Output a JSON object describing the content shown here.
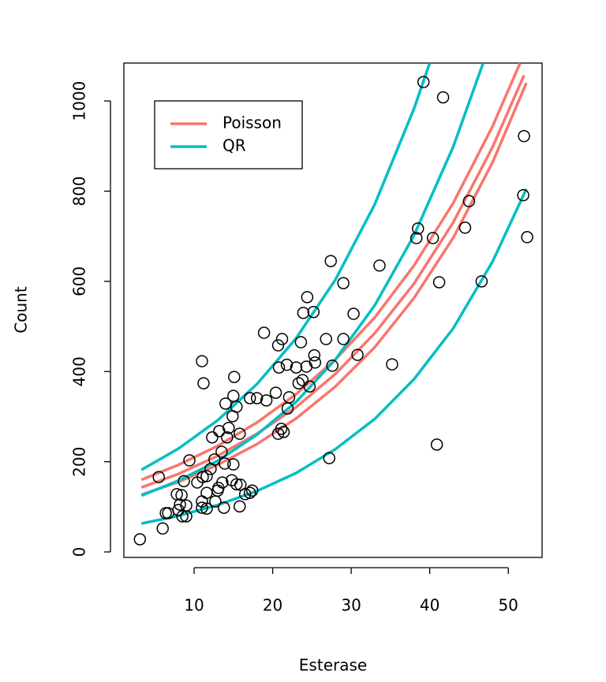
{
  "chart_data": {
    "type": "scatter",
    "xlabel": "Esterase",
    "ylabel": "Count",
    "xlim": [
      1.06,
      54.3
    ],
    "ylim": [
      -12.2,
      1084
    ],
    "xticks": [
      10,
      20,
      30,
      40,
      50
    ],
    "yticks": [
      0,
      200,
      400,
      600,
      800,
      1000
    ],
    "point_color": "#000000",
    "legend": "topleft",
    "x": [
      3.1,
      6.0,
      5.5,
      6.4,
      6.7,
      7.8,
      8.2,
      8.0,
      8.5,
      9.0,
      8.7,
      9.4,
      8.4,
      9.0,
      10.4,
      11.1,
      11.6,
      11.0,
      11.6,
      11.0,
      11.6,
      12.7,
      13.0,
      13.1,
      13.6,
      13.8,
      14.8,
      15.4,
      15.9,
      16.5,
      17.1,
      17.4,
      15.8,
      15.0,
      12.3,
      13.2,
      13.5,
      14.2,
      14.4,
      14.9,
      15.4,
      15.8,
      15.0,
      14.0,
      11.0,
      11.2,
      15.1,
      17.1,
      18.0,
      19.2,
      18.9,
      20.4,
      20.7,
      21.2,
      20.8,
      21.4,
      20.7,
      21.1,
      21.9,
      22.1,
      21.8,
      23.0,
      23.3,
      23.8,
      23.6,
      24.3,
      23.9,
      24.4,
      25.2,
      25.4,
      24.7,
      25.3,
      26.8,
      27.4,
      27.6,
      29.0,
      29.0,
      30.3,
      30.8,
      33.6,
      35.2,
      27.2,
      38.5,
      38.3,
      40.4,
      39.2,
      41.7,
      41.2,
      44.5,
      45.0,
      46.6,
      40.9,
      52.0,
      51.9,
      52.4,
      12.1,
      12.6,
      13.9
    ],
    "values": [
      28,
      52,
      166,
      86,
      86,
      128,
      105,
      93,
      79,
      79,
      157,
      203,
      126,
      103,
      154,
      166,
      168,
      112,
      131,
      98,
      96,
      112,
      136,
      142,
      154,
      98,
      159,
      150,
      149,
      128,
      131,
      136,
      101,
      194,
      254,
      268,
      222,
      254,
      275,
      301,
      322,
      262,
      346,
      329,
      423,
      374,
      388,
      341,
      341,
      336,
      486,
      353,
      458,
      472,
      409,
      266,
      262,
      273,
      318,
      343,
      415,
      409,
      374,
      381,
      465,
      411,
      530,
      565,
      532,
      420,
      367,
      436,
      472,
      645,
      413,
      472,
      596,
      528,
      437,
      635,
      416,
      208,
      717,
      696,
      696,
      1042,
      1008,
      598,
      719,
      778,
      600,
      238,
      922,
      791,
      698,
      184,
      205,
      196
    ],
    "fits": [
      {
        "name": "Poisson",
        "color": "#F8766D",
        "curves": [
          {
            "x": [
              3.3,
              8,
              13,
              18,
              23,
              28,
              33,
              38,
              43,
              48,
              51.5
            ],
            "values": [
              160,
              193,
              235,
              287,
              350,
              427,
              520,
              635,
              774,
              944,
              1084
            ]
          },
          {
            "x": [
              3.3,
              8,
              13,
              18,
              23,
              28,
              33,
              38,
              43,
              48,
              52
            ],
            "values": [
              143,
              173,
              213,
              262,
              321,
              395,
              485,
              595,
              731,
              898,
              1057
            ]
          },
          {
            "x": [
              3.3,
              8,
              13,
              18,
              23,
              28,
              33,
              38,
              43,
              48,
              52.3
            ],
            "values": [
              127,
              155,
              193,
              239,
              296,
              367,
              454,
              563,
              697,
              864,
              1040
            ]
          }
        ]
      },
      {
        "name": "QR",
        "color": "#00BFC4",
        "curves": [
          {
            "x": [
              3.3,
              8,
              13,
              18,
              23,
              28,
              33,
              38,
              40
            ],
            "values": [
              182,
              229,
              292,
              372,
              474,
              604,
              771,
              983,
              1084
            ]
          },
          {
            "x": [
              3.3,
              8,
              13,
              18,
              23,
              28,
              33,
              38,
              43,
              46.8
            ],
            "values": [
              125,
              158,
              202,
              260,
              333,
              427,
              547,
              702,
              899,
              1084
            ]
          },
          {
            "x": [
              3.3,
              8,
              13,
              18,
              23,
              28,
              33,
              38,
              43,
              48,
              52.3
            ],
            "values": [
              63,
              80,
              104,
              135,
              175,
              228,
              295,
              383,
              496,
              644,
              805
            ]
          }
        ]
      }
    ]
  }
}
